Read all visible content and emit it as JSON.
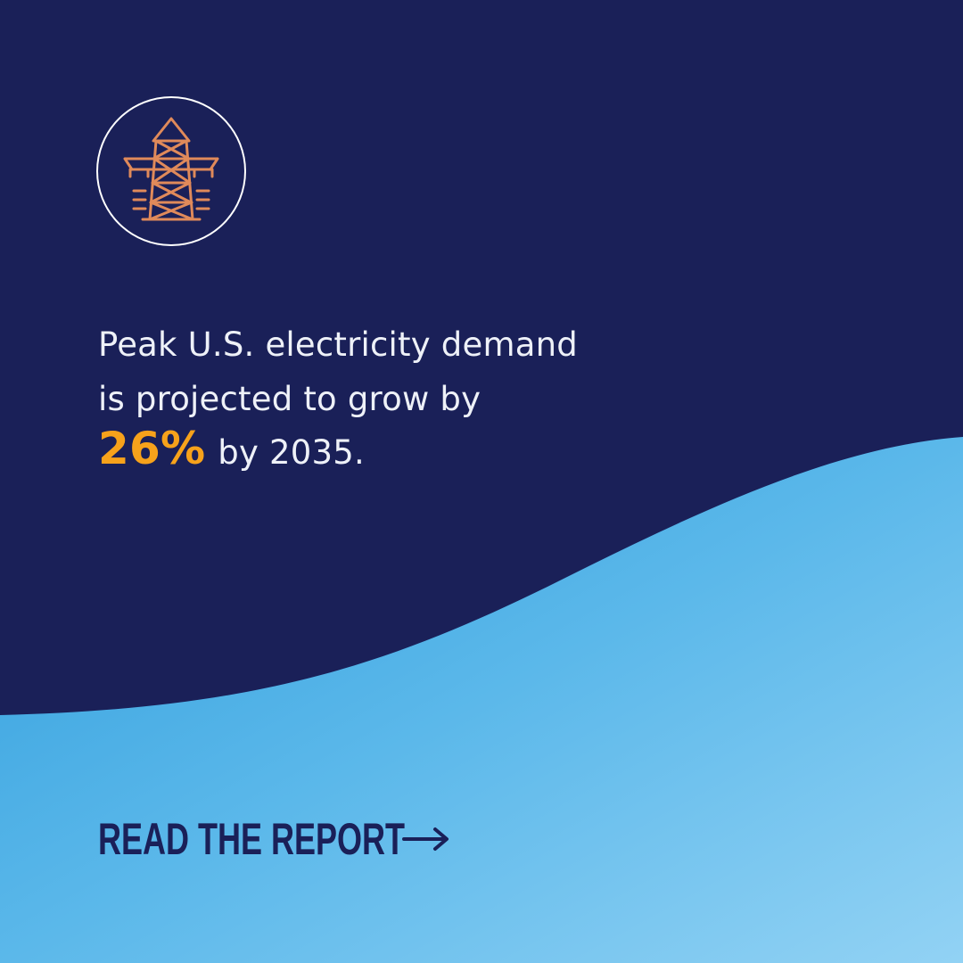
{
  "headline": {
    "lines": [
      "Peak U.S. electricity demand",
      "is projected to grow by"
    ],
    "stat": "26%",
    "stat_suffix": "by 2035."
  },
  "cta": {
    "label": "READ THE REPORT"
  }
}
